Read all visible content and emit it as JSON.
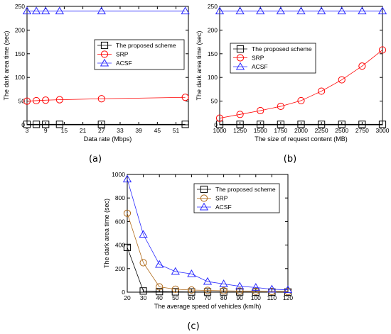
{
  "colors": {
    "proposed": "#000000",
    "srp": "#ff0000",
    "acsf": "#2b2bff",
    "srp_c": "#b06a1a"
  },
  "chart_data": [
    {
      "type": "line",
      "panel_label": "(a)",
      "xlabel": "Data rate (Mbps)",
      "ylabel": "The dark area time (sec)",
      "xlim": [
        3,
        55
      ],
      "ylim": [
        0,
        250
      ],
      "xticks": [
        3,
        9,
        15,
        21,
        27,
        33,
        39,
        45,
        51
      ],
      "yticks": [
        0,
        50,
        100,
        150,
        200,
        250
      ],
      "legend": "center-right",
      "series": [
        {
          "name": "The proposed scheme",
          "marker": "square",
          "color": "#000000",
          "x": [
            3,
            6,
            9,
            13.5,
            27,
            54
          ],
          "y": [
            1,
            1,
            1,
            1,
            1,
            1
          ]
        },
        {
          "name": "SRP",
          "marker": "circle",
          "color": "#ff0000",
          "x": [
            3,
            6,
            9,
            13.5,
            27,
            54
          ],
          "y": [
            50,
            51,
            52,
            53,
            55,
            58
          ]
        },
        {
          "name": "ACSF",
          "marker": "triangle",
          "color": "#2b2bff",
          "x": [
            3,
            6,
            9,
            13.5,
            27,
            54
          ],
          "y": [
            240,
            240,
            240,
            240,
            240,
            240
          ]
        }
      ]
    },
    {
      "type": "line",
      "panel_label": "(b)",
      "xlabel": "The size of request content (MB)",
      "ylabel": "The dark area time (sec)",
      "xlim": [
        1000,
        3000
      ],
      "ylim": [
        0,
        250
      ],
      "xticks": [
        1000,
        1250,
        1500,
        1750,
        2000,
        2250,
        2500,
        2750,
        3000
      ],
      "yticks": [
        0,
        50,
        100,
        150,
        200,
        250
      ],
      "legend": "top-right",
      "series": [
        {
          "name": "The proposed scheme",
          "marker": "square",
          "color": "#000000",
          "x": [
            1000,
            1250,
            1500,
            1750,
            2000,
            2250,
            2500,
            2750,
            3000
          ],
          "y": [
            1,
            1,
            1,
            1,
            1,
            1,
            1,
            1,
            1
          ]
        },
        {
          "name": "SRP",
          "marker": "circle",
          "color": "#ff0000",
          "x": [
            1000,
            1250,
            1500,
            1750,
            2000,
            2250,
            2500,
            2750,
            3000
          ],
          "y": [
            14,
            22,
            30,
            39,
            51,
            71,
            95,
            124,
            158
          ]
        },
        {
          "name": "ACSF",
          "marker": "triangle",
          "color": "#2b2bff",
          "x": [
            1000,
            1250,
            1500,
            1750,
            2000,
            2250,
            2500,
            2750,
            3000
          ],
          "y": [
            240,
            240,
            240,
            240,
            240,
            240,
            240,
            240,
            240
          ]
        }
      ]
    },
    {
      "type": "line",
      "panel_label": "(c)",
      "xlabel": "The average speed of vehicles (km/h)",
      "ylabel": "The dark area time (sec)",
      "xlim": [
        20,
        120
      ],
      "ylim": [
        0,
        1000
      ],
      "xticks": [
        20,
        30,
        40,
        50,
        60,
        70,
        80,
        90,
        100,
        110,
        120
      ],
      "yticks": [
        0,
        200,
        400,
        600,
        800,
        1000
      ],
      "legend": "top-right",
      "series": [
        {
          "name": "The proposed scheme",
          "marker": "square",
          "color": "#000000",
          "x": [
            20,
            30,
            40,
            50,
            60,
            70,
            80,
            90,
            100,
            110,
            120
          ],
          "y": [
            380,
            10,
            5,
            3,
            2,
            2,
            2,
            2,
            1,
            1,
            1
          ]
        },
        {
          "name": "SRP",
          "marker": "circle",
          "color": "#b06a1a",
          "x": [
            20,
            30,
            40,
            50,
            60,
            70,
            80,
            90,
            100,
            110,
            120
          ],
          "y": [
            670,
            250,
            45,
            25,
            18,
            15,
            12,
            10,
            8,
            6,
            5
          ]
        },
        {
          "name": "ACSF",
          "marker": "triangle",
          "color": "#2b2bff",
          "x": [
            20,
            30,
            40,
            50,
            60,
            70,
            80,
            90,
            100,
            110,
            120
          ],
          "y": [
            960,
            490,
            235,
            175,
            155,
            90,
            70,
            50,
            40,
            25,
            20
          ]
        }
      ]
    }
  ]
}
